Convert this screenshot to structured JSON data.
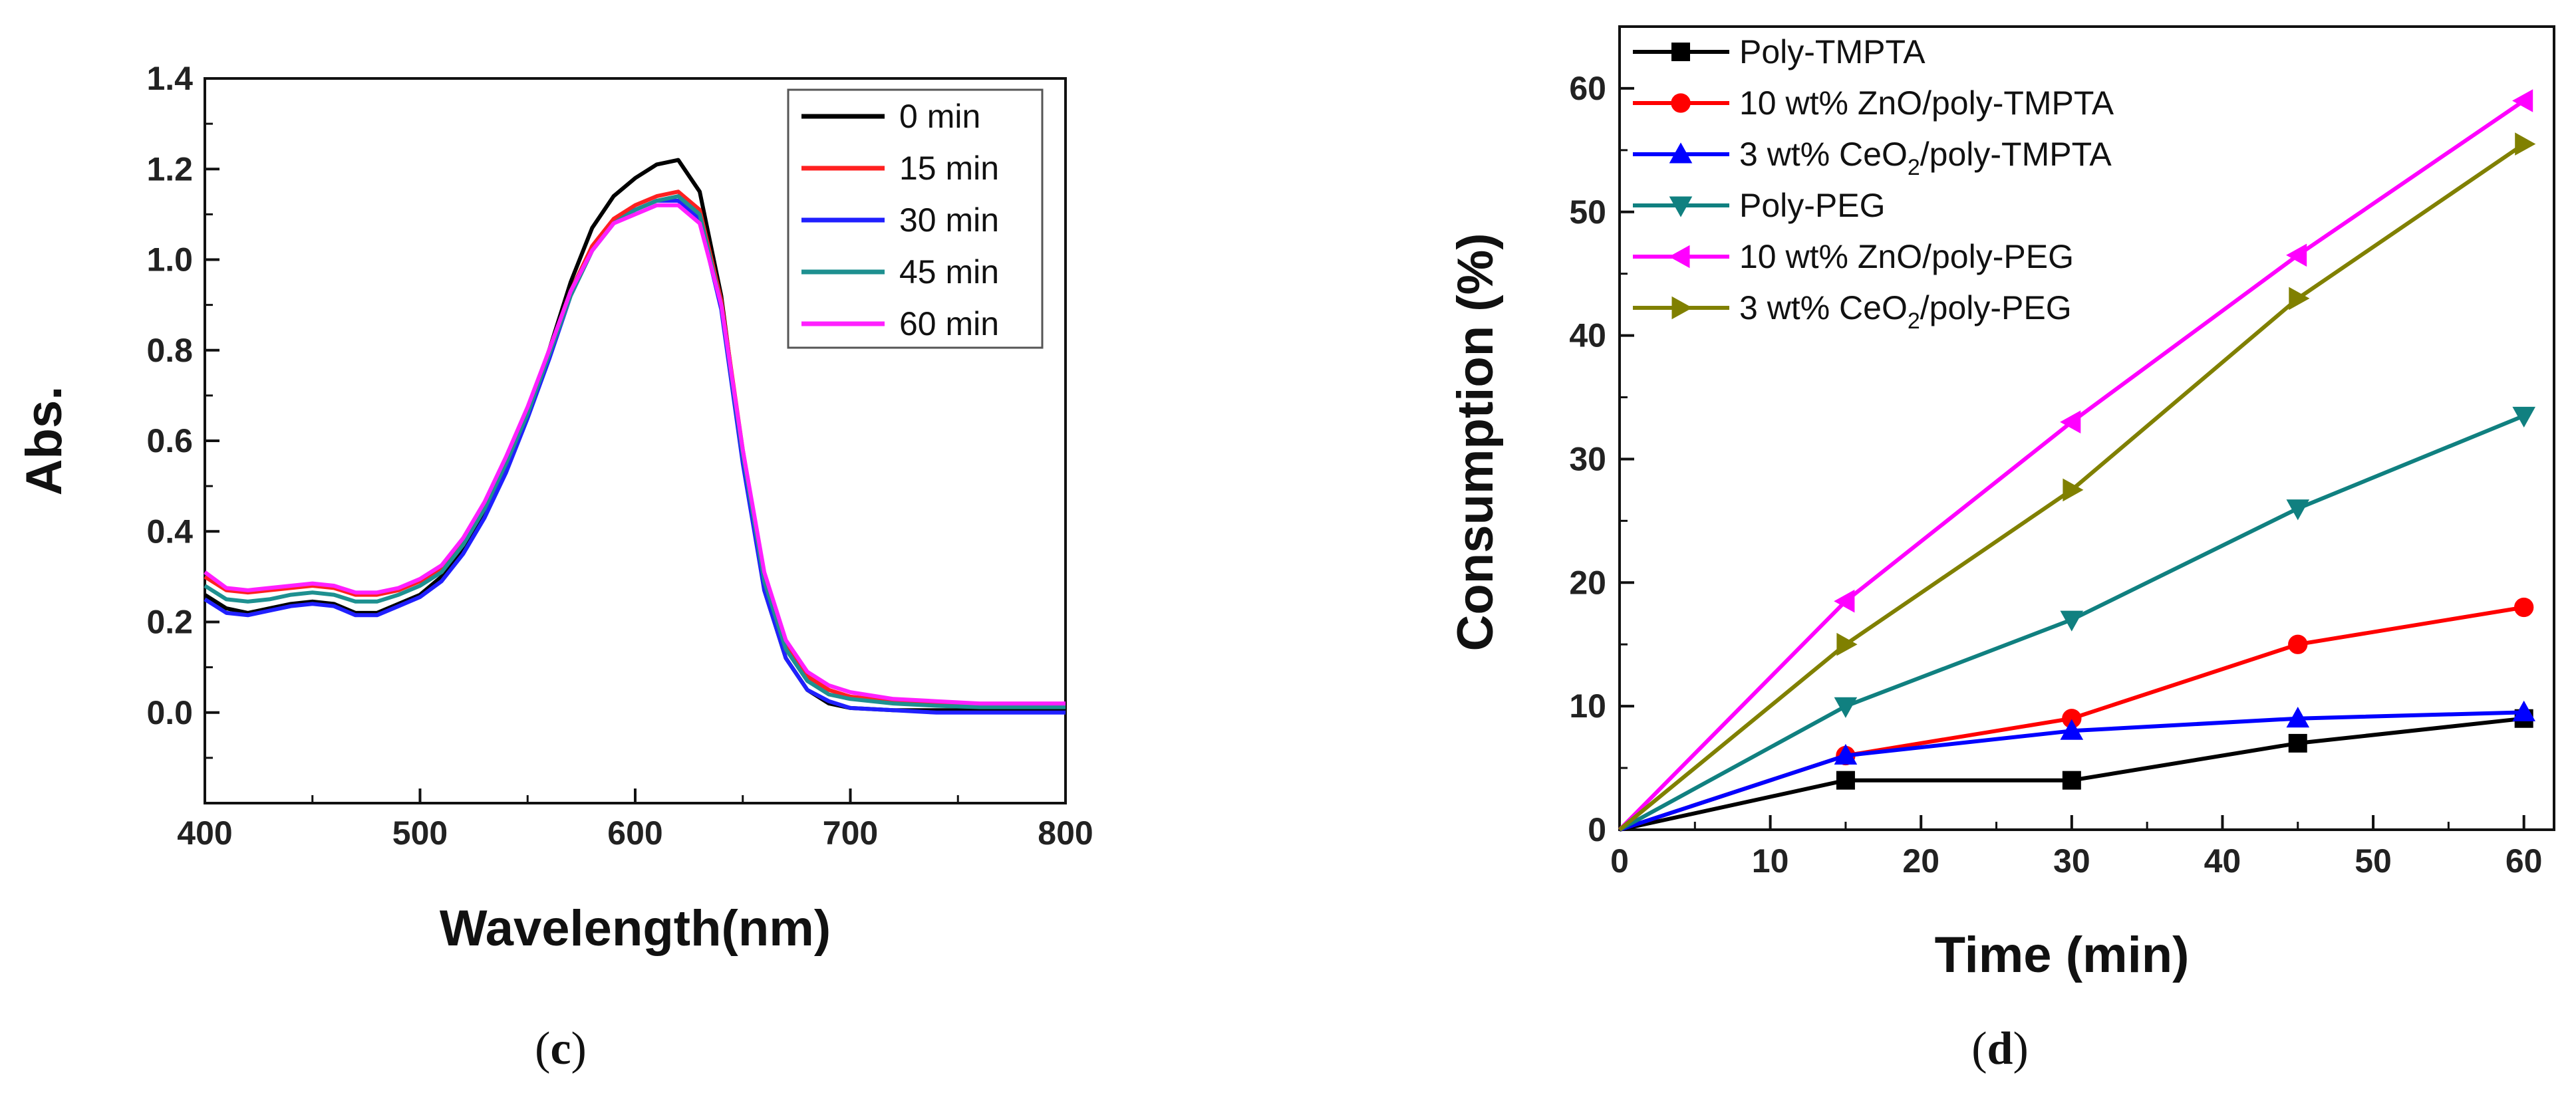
{
  "chart_data": [
    {
      "type": "line",
      "caption": {
        "open": "(",
        "letter": "c",
        "close": ")"
      },
      "xlabel": "Wavelength(nm)",
      "ylabel": "Abs.",
      "xlim": [
        400,
        800
      ],
      "ylim": [
        -0.2,
        1.4
      ],
      "xticks": [
        400,
        500,
        600,
        700,
        800
      ],
      "yticks": [
        0.0,
        0.2,
        0.4,
        0.6,
        0.8,
        1.0,
        1.2,
        1.4
      ],
      "ytick_labels": [
        "0.0",
        "0.2",
        "0.4",
        "0.6",
        "0.8",
        "1.0",
        "1.2",
        "1.4"
      ],
      "legend_position": "top-right",
      "series": [
        {
          "name": "0 min",
          "color": "#000000",
          "x": [
            400,
            410,
            420,
            430,
            440,
            450,
            460,
            470,
            480,
            490,
            500,
            510,
            520,
            530,
            540,
            550,
            560,
            570,
            580,
            590,
            600,
            610,
            620,
            630,
            640,
            650,
            660,
            670,
            680,
            690,
            700,
            720,
            740,
            760,
            780,
            800
          ],
          "y": [
            0.26,
            0.23,
            0.22,
            0.23,
            0.24,
            0.245,
            0.24,
            0.22,
            0.22,
            0.24,
            0.26,
            0.3,
            0.36,
            0.44,
            0.54,
            0.66,
            0.8,
            0.95,
            1.07,
            1.14,
            1.18,
            1.21,
            1.22,
            1.15,
            0.92,
            0.56,
            0.27,
            0.12,
            0.05,
            0.02,
            0.01,
            0.005,
            0.005,
            0.005,
            0.005,
            0.005
          ]
        },
        {
          "name": "15 min",
          "color": "#ff2020",
          "x": [
            400,
            410,
            420,
            430,
            440,
            450,
            460,
            470,
            480,
            490,
            500,
            510,
            520,
            530,
            540,
            550,
            560,
            570,
            580,
            590,
            600,
            610,
            620,
            630,
            640,
            650,
            660,
            670,
            680,
            690,
            700,
            720,
            740,
            760,
            780,
            800
          ],
          "y": [
            0.3,
            0.27,
            0.265,
            0.27,
            0.275,
            0.28,
            0.275,
            0.26,
            0.26,
            0.27,
            0.29,
            0.32,
            0.38,
            0.46,
            0.56,
            0.67,
            0.8,
            0.93,
            1.03,
            1.09,
            1.12,
            1.14,
            1.15,
            1.11,
            0.91,
            0.58,
            0.3,
            0.15,
            0.08,
            0.05,
            0.035,
            0.025,
            0.02,
            0.015,
            0.015,
            0.015
          ]
        },
        {
          "name": "30 min",
          "color": "#2020ff",
          "x": [
            400,
            410,
            420,
            430,
            440,
            450,
            460,
            470,
            480,
            490,
            500,
            510,
            520,
            530,
            540,
            550,
            560,
            570,
            580,
            590,
            600,
            610,
            620,
            630,
            640,
            650,
            660,
            670,
            680,
            690,
            700,
            720,
            740,
            760,
            780,
            800
          ],
          "y": [
            0.25,
            0.22,
            0.215,
            0.225,
            0.235,
            0.24,
            0.235,
            0.215,
            0.215,
            0.235,
            0.255,
            0.29,
            0.35,
            0.43,
            0.53,
            0.65,
            0.78,
            0.92,
            1.02,
            1.08,
            1.11,
            1.13,
            1.13,
            1.09,
            0.89,
            0.55,
            0.27,
            0.12,
            0.05,
            0.025,
            0.01,
            0.005,
            0.0,
            0.0,
            0.0,
            0.0
          ]
        },
        {
          "name": "45 min",
          "color": "#1e9090",
          "x": [
            400,
            410,
            420,
            430,
            440,
            450,
            460,
            470,
            480,
            490,
            500,
            510,
            520,
            530,
            540,
            550,
            560,
            570,
            580,
            590,
            600,
            610,
            620,
            630,
            640,
            650,
            660,
            670,
            680,
            690,
            700,
            720,
            740,
            760,
            780,
            800
          ],
          "y": [
            0.28,
            0.25,
            0.245,
            0.25,
            0.26,
            0.265,
            0.26,
            0.245,
            0.245,
            0.26,
            0.28,
            0.31,
            0.37,
            0.45,
            0.55,
            0.66,
            0.79,
            0.92,
            1.02,
            1.08,
            1.11,
            1.13,
            1.14,
            1.1,
            0.9,
            0.57,
            0.29,
            0.14,
            0.07,
            0.04,
            0.03,
            0.02,
            0.015,
            0.012,
            0.012,
            0.012
          ]
        },
        {
          "name": "60 min",
          "color": "#ff20ff",
          "x": [
            400,
            410,
            420,
            430,
            440,
            450,
            460,
            470,
            480,
            490,
            500,
            510,
            520,
            530,
            540,
            550,
            560,
            570,
            580,
            590,
            600,
            610,
            620,
            630,
            640,
            650,
            660,
            670,
            680,
            690,
            700,
            720,
            740,
            760,
            780,
            800
          ],
          "y": [
            0.31,
            0.275,
            0.27,
            0.275,
            0.28,
            0.285,
            0.28,
            0.265,
            0.265,
            0.275,
            0.295,
            0.325,
            0.385,
            0.465,
            0.565,
            0.675,
            0.8,
            0.93,
            1.02,
            1.08,
            1.1,
            1.12,
            1.12,
            1.08,
            0.9,
            0.58,
            0.31,
            0.16,
            0.09,
            0.06,
            0.045,
            0.03,
            0.025,
            0.02,
            0.02,
            0.02
          ]
        }
      ]
    },
    {
      "type": "line",
      "caption": {
        "open": "(",
        "letter": "d",
        "close": ")"
      },
      "xlabel": "Time (min)",
      "ylabel": "Consumption (%)",
      "xlim": [
        0,
        62
      ],
      "ylim": [
        0,
        65
      ],
      "xticks": [
        0,
        10,
        20,
        30,
        40,
        50,
        60
      ],
      "yticks": [
        0,
        10,
        20,
        30,
        40,
        50,
        60
      ],
      "legend_position": "top-left",
      "series": [
        {
          "name": "Poly-TMPTA",
          "legend_parts": [
            "Poly-TMPTA"
          ],
          "color": "#000000",
          "marker": "square",
          "x": [
            0,
            15,
            30,
            45,
            60
          ],
          "y": [
            0,
            4,
            4,
            7,
            9
          ]
        },
        {
          "name": "10 wt% ZnO/poly-TMPTA",
          "legend_parts": [
            "10 wt% ZnO/poly-TMPTA"
          ],
          "color": "#ff0000",
          "marker": "circle",
          "x": [
            0,
            15,
            30,
            45,
            60
          ],
          "y": [
            0,
            6,
            9,
            15,
            18
          ]
        },
        {
          "name": "3 wt% CeO2/poly-TMPTA",
          "legend_parts": [
            "3 wt% CeO",
            "2",
            "/poly-TMPTA"
          ],
          "color": "#0000ff",
          "marker": "triangle-up",
          "x": [
            0,
            15,
            30,
            45,
            60
          ],
          "y": [
            0,
            6,
            8,
            9,
            9.5
          ]
        },
        {
          "name": "Poly-PEG",
          "legend_parts": [
            "Poly-PEG"
          ],
          "color": "#108080",
          "marker": "triangle-down",
          "x": [
            0,
            15,
            30,
            45,
            60
          ],
          "y": [
            0,
            10,
            17,
            26,
            33.5
          ]
        },
        {
          "name": "10 wt% ZnO/poly-PEG",
          "legend_parts": [
            "10 wt% ZnO/poly-PEG"
          ],
          "color": "#ff00ff",
          "marker": "triangle-left",
          "x": [
            0,
            15,
            30,
            45,
            60
          ],
          "y": [
            0,
            18.5,
            33,
            46.5,
            59
          ]
        },
        {
          "name": "3 wt% CeO2/poly-PEG",
          "legend_parts": [
            "3 wt% CeO",
            "2",
            "/poly-PEG"
          ],
          "color": "#808000",
          "marker": "triangle-right",
          "x": [
            0,
            15,
            30,
            45,
            60
          ],
          "y": [
            0,
            15,
            27.5,
            43,
            55.5
          ]
        }
      ]
    }
  ]
}
